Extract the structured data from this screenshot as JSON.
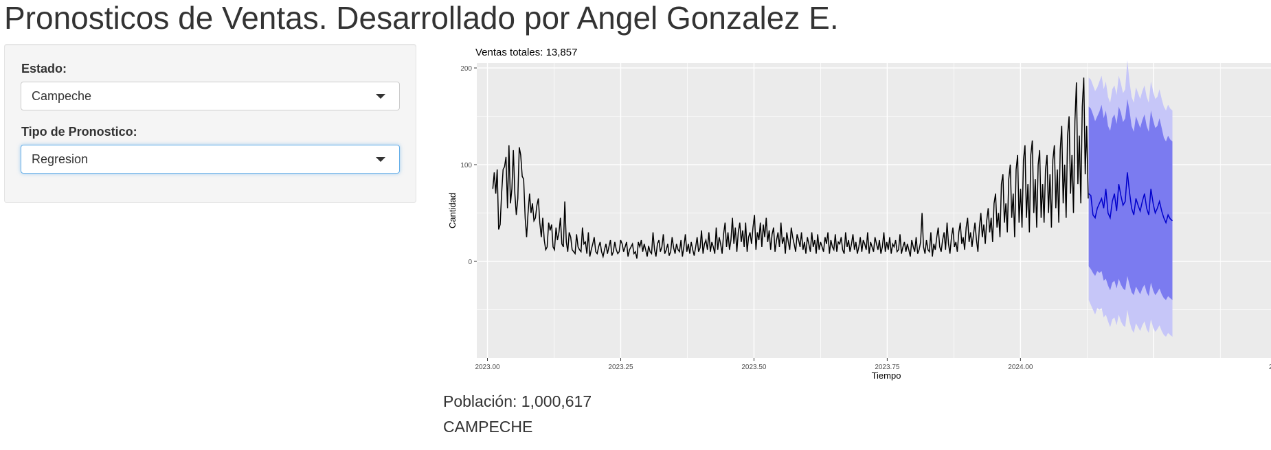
{
  "header": {
    "title": "Pronosticos de Ventas. Desarrollado por Angel Gonzalez E."
  },
  "sidebar": {
    "estado": {
      "label": "Estado:",
      "value": "Campeche"
    },
    "tipo": {
      "label": "Tipo de Pronostico:",
      "value": "Regresion"
    }
  },
  "chart_data": {
    "type": "line",
    "title": "Ventas totales: 13,857",
    "xlabel": "Tiempo",
    "ylabel": "Cantidad",
    "xlim": [
      2022.98,
      2024.47
    ],
    "ylim": [
      -100,
      205
    ],
    "x_ticks": [
      2023.0,
      2023.25,
      2023.5,
      2023.75,
      2024.0
    ],
    "x_tick_labels": [
      "2023.00",
      "2023.25",
      "2023.50",
      "2023.75",
      "2024.00"
    ],
    "x_tick_labels_clipped": [
      "2"
    ],
    "y_ticks": [
      0,
      100,
      200
    ],
    "y_tick_labels": [
      "0",
      "100",
      "200"
    ],
    "grid": true,
    "background": "#ebebeb",
    "history": {
      "x_start": 2023.01,
      "x_end": 2024.127,
      "values": [
        75,
        92,
        70,
        95,
        33,
        38,
        70,
        95,
        98,
        108,
        55,
        120,
        60,
        75,
        115,
        70,
        48,
        65,
        118,
        110,
        88,
        85,
        45,
        25,
        50,
        70,
        50,
        60,
        42,
        45,
        58,
        65,
        40,
        25,
        45,
        22,
        12,
        15,
        40,
        32,
        38,
        15,
        12,
        35,
        22,
        30,
        45,
        18,
        15,
        62,
        20,
        10,
        30,
        25,
        12,
        10,
        8,
        28,
        15,
        12,
        10,
        35,
        18,
        20,
        8,
        30,
        5,
        12,
        18,
        25,
        10,
        8,
        15,
        20,
        10,
        5,
        12,
        18,
        8,
        15,
        22,
        6,
        10,
        20,
        12,
        8,
        10,
        22,
        18,
        10,
        15,
        20,
        5,
        12,
        15,
        18,
        8,
        10,
        3,
        20,
        15,
        22,
        10,
        18,
        12,
        5,
        16,
        10,
        8,
        30,
        12,
        5,
        18,
        22,
        10,
        15,
        28,
        8,
        12,
        18,
        6,
        10,
        25,
        14,
        8,
        18,
        12,
        10,
        22,
        5,
        15,
        28,
        10,
        18,
        8,
        20,
        12,
        6,
        15,
        25,
        10,
        14,
        32,
        8,
        18,
        22,
        12,
        30,
        10,
        20,
        15,
        8,
        35,
        12,
        25,
        18,
        8,
        28,
        40,
        15,
        30,
        12,
        22,
        45,
        18,
        35,
        10,
        30,
        40,
        20,
        32,
        15,
        40,
        10,
        25,
        30,
        18,
        35,
        48,
        12,
        30,
        22,
        40,
        15,
        38,
        25,
        45,
        20,
        32,
        12,
        28,
        35,
        10,
        22,
        30,
        15,
        40,
        18,
        25,
        8,
        30,
        20,
        12,
        35,
        25,
        18,
        10,
        28,
        22,
        15,
        30,
        12,
        20,
        8,
        25,
        18,
        10,
        30,
        15,
        22,
        8,
        28,
        12,
        20,
        15,
        10,
        25,
        18,
        30,
        8,
        22,
        15,
        12,
        28,
        10,
        20,
        18,
        25,
        12,
        8,
        30,
        15,
        22,
        10,
        18,
        28,
        12,
        20,
        8,
        15,
        25,
        10,
        22,
        18,
        12,
        30,
        8,
        20,
        15,
        10,
        25,
        18,
        12,
        22,
        8,
        15,
        30,
        10,
        20,
        12,
        25,
        8,
        18,
        15,
        22,
        10,
        12,
        28,
        8,
        15,
        20,
        10,
        18,
        12,
        5,
        22,
        15,
        10,
        25,
        8,
        12,
        20,
        50,
        15,
        8,
        22,
        12,
        10,
        30,
        5,
        18,
        12,
        25,
        35,
        15,
        10,
        22,
        30,
        12,
        40,
        18,
        8,
        25,
        35,
        15,
        20,
        10,
        30,
        40,
        18,
        25,
        12,
        35,
        45,
        20,
        30,
        15,
        28,
        40,
        22,
        10,
        35,
        50,
        25,
        38,
        18,
        42,
        55,
        30,
        45,
        20,
        60,
        70,
        35,
        50,
        25,
        80,
        90,
        40,
        60,
        30,
        85,
        100,
        45,
        70,
        25,
        95,
        110,
        40,
        75,
        35,
        105,
        120,
        45,
        80,
        30,
        110,
        125,
        50,
        85,
        35,
        100,
        115,
        45,
        80,
        40,
        95,
        110,
        50,
        90,
        35,
        105,
        120,
        55,
        95,
        40,
        115,
        140,
        60,
        100,
        45,
        130,
        150,
        70,
        110,
        50,
        145,
        185,
        80,
        130,
        60,
        160,
        190,
        90,
        140,
        65
      ]
    },
    "forecast": {
      "x_start": 2024.128,
      "x_end": 2024.285,
      "values": [
        70,
        68,
        48,
        45,
        55,
        60,
        65,
        55,
        75,
        50,
        45,
        62,
        70,
        52,
        80,
        68,
        58,
        62,
        92,
        72,
        55,
        48,
        65,
        58,
        52,
        62,
        70,
        55,
        48,
        75,
        60,
        50,
        55,
        62,
        52,
        45,
        40,
        48,
        44,
        42
      ],
      "band80": [
        [
          -5,
          160
        ],
        [
          -8,
          158
        ],
        [
          -12,
          152
        ],
        [
          -15,
          145
        ],
        [
          -10,
          150
        ],
        [
          -12,
          155
        ],
        [
          -10,
          162
        ],
        [
          -20,
          148
        ],
        [
          -18,
          156
        ],
        [
          -25,
          140
        ],
        [
          -30,
          135
        ],
        [
          -22,
          148
        ],
        [
          -20,
          152
        ],
        [
          -28,
          142
        ],
        [
          -18,
          160
        ],
        [
          -24,
          154
        ],
        [
          -28,
          144
        ],
        [
          -30,
          148
        ],
        [
          -15,
          168
        ],
        [
          -24,
          156
        ],
        [
          -32,
          140
        ],
        [
          -35,
          134
        ],
        [
          -26,
          150
        ],
        [
          -30,
          144
        ],
        [
          -34,
          138
        ],
        [
          -28,
          146
        ],
        [
          -24,
          152
        ],
        [
          -32,
          140
        ],
        [
          -36,
          134
        ],
        [
          -22,
          156
        ],
        [
          -30,
          146
        ],
        [
          -35,
          138
        ],
        [
          -32,
          140
        ],
        [
          -28,
          148
        ],
        [
          -34,
          138
        ],
        [
          -38,
          128
        ],
        [
          -40,
          124
        ],
        [
          -36,
          130
        ],
        [
          -38,
          126
        ],
        [
          -40,
          124
        ]
      ],
      "band95": [
        [
          -40,
          190
        ],
        [
          -45,
          188
        ],
        [
          -50,
          182
        ],
        [
          -55,
          176
        ],
        [
          -48,
          180
        ],
        [
          -50,
          186
        ],
        [
          -48,
          192
        ],
        [
          -58,
          178
        ],
        [
          -55,
          186
        ],
        [
          -62,
          170
        ],
        [
          -68,
          164
        ],
        [
          -60,
          178
        ],
        [
          -58,
          182
        ],
        [
          -66,
          172
        ],
        [
          -55,
          192
        ],
        [
          -62,
          184
        ],
        [
          -66,
          174
        ],
        [
          -68,
          178
        ],
        [
          -50,
          208
        ],
        [
          -62,
          186
        ],
        [
          -70,
          170
        ],
        [
          -74,
          164
        ],
        [
          -64,
          180
        ],
        [
          -68,
          174
        ],
        [
          -72,
          168
        ],
        [
          -66,
          176
        ],
        [
          -62,
          182
        ],
        [
          -70,
          170
        ],
        [
          -74,
          164
        ],
        [
          -60,
          186
        ],
        [
          -68,
          176
        ],
        [
          -73,
          168
        ],
        [
          -70,
          170
        ],
        [
          -66,
          178
        ],
        [
          -72,
          168
        ],
        [
          -76,
          160
        ],
        [
          -78,
          156
        ],
        [
          -74,
          162
        ],
        [
          -76,
          158
        ],
        [
          -78,
          156
        ]
      ]
    },
    "colors": {
      "history": "#000000",
      "forecast": "#0000cc",
      "band80": "#7b7bf0",
      "band95": "#c6c6f8"
    }
  },
  "info": {
    "poblacion": "Población: 1,000,617",
    "estado_upper": "CAMPECHE"
  }
}
